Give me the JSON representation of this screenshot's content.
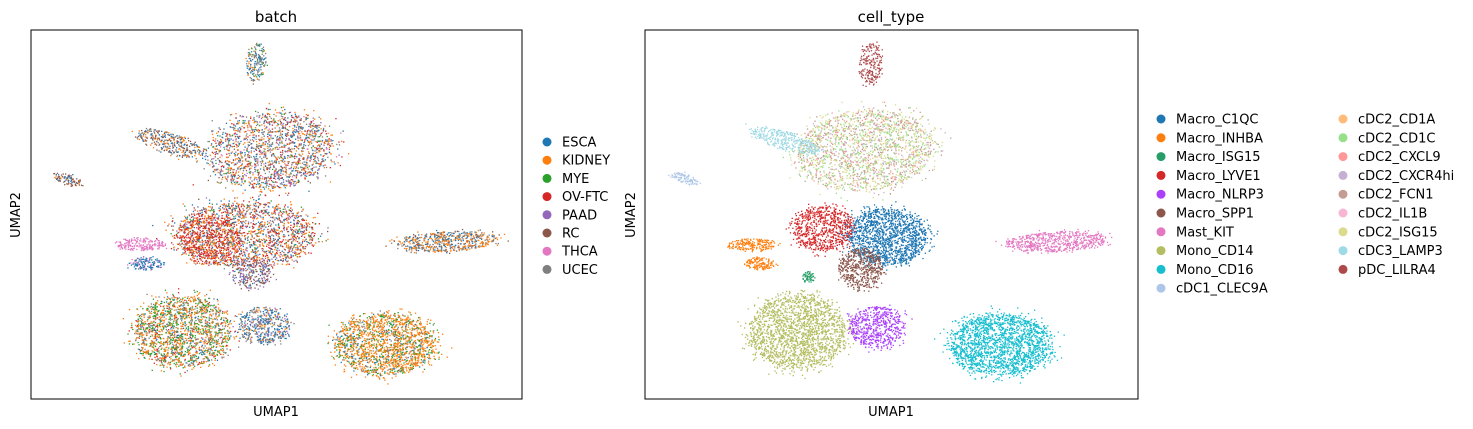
{
  "chart_data": [
    {
      "type": "scatter",
      "title": "batch",
      "xlabel": "UMAP1",
      "ylabel": "UMAP2",
      "legend_placement": "right",
      "legend": [
        {
          "name": "ESCA",
          "color": "#1f77b4"
        },
        {
          "name": "KIDNEY",
          "color": "#ff7f0e"
        },
        {
          "name": "MYE",
          "color": "#2ca02c"
        },
        {
          "name": "OV-FTC",
          "color": "#d62728"
        },
        {
          "name": "PAAD",
          "color": "#9467bd"
        },
        {
          "name": "RC",
          "color": "#8c564b"
        },
        {
          "name": "THCA",
          "color": "#e377c2"
        },
        {
          "name": "UCEC",
          "color": "#7f7f7f"
        }
      ]
    },
    {
      "type": "scatter",
      "title": "cell_type",
      "xlabel": "UMAP1",
      "ylabel": "UMAP2",
      "legend_placement": "right",
      "legend": [
        {
          "name": "Macro_C1QC",
          "color": "#1f77b4"
        },
        {
          "name": "Macro_INHBA",
          "color": "#ff7f0e"
        },
        {
          "name": "Macro_ISG15",
          "color": "#279e68"
        },
        {
          "name": "Macro_LYVE1",
          "color": "#d62728"
        },
        {
          "name": "Macro_NLRP3",
          "color": "#aa40fc"
        },
        {
          "name": "Macro_SPP1",
          "color": "#8c564b"
        },
        {
          "name": "Mast_KIT",
          "color": "#e377c2"
        },
        {
          "name": "Mono_CD14",
          "color": "#b5bd61"
        },
        {
          "name": "Mono_CD16",
          "color": "#17becf"
        },
        {
          "name": "cDC1_CLEC9A",
          "color": "#aec7e8"
        },
        {
          "name": "cDC2_CD1A",
          "color": "#ffbb78"
        },
        {
          "name": "cDC2_CD1C",
          "color": "#98df8a"
        },
        {
          "name": "cDC2_CXCL9",
          "color": "#ff9896"
        },
        {
          "name": "cDC2_CXCR4hi",
          "color": "#c5b0d5"
        },
        {
          "name": "cDC2_FCN1",
          "color": "#c49c94"
        },
        {
          "name": "cDC2_IL1B",
          "color": "#f7b6d2"
        },
        {
          "name": "cDC2_ISG15",
          "color": "#dbdb8d"
        },
        {
          "name": "cDC3_LAMP3",
          "color": "#9edae5"
        },
        {
          "name": "pDC_LILRA4",
          "color": "#ad494a"
        }
      ]
    }
  ]
}
